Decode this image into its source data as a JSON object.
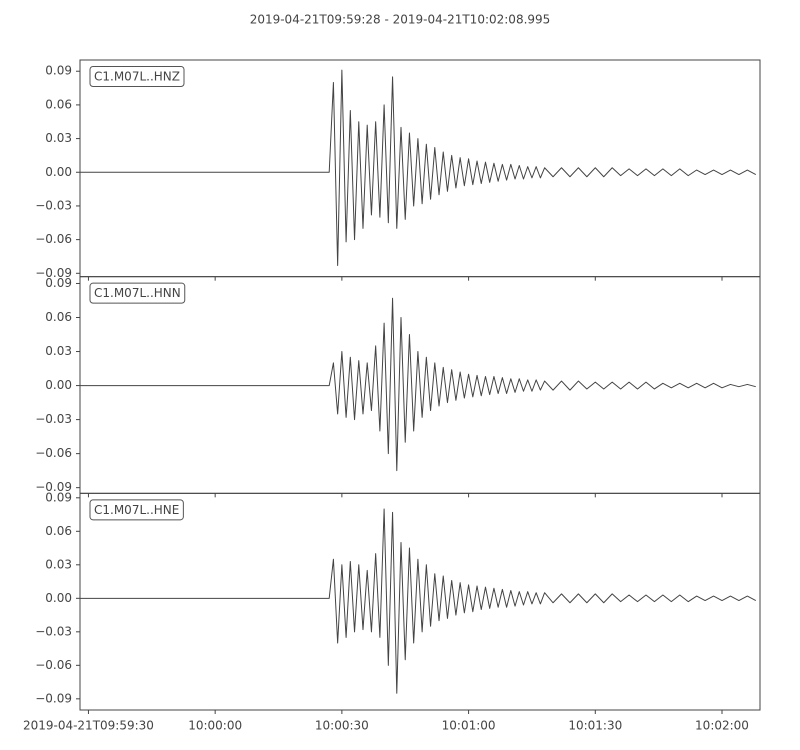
{
  "chart_data": {
    "type": "line",
    "title": "2019-04-21T09:59:28  -  2019-04-21T10:02:08.995",
    "x": [
      0,
      4,
      8,
      12,
      16,
      20,
      24,
      28,
      32,
      36,
      40,
      44,
      48,
      52,
      56,
      58,
      59,
      60,
      61,
      62,
      63,
      64,
      65,
      66,
      67,
      68,
      69,
      70,
      71,
      72,
      73,
      74,
      75,
      76,
      77,
      78,
      79,
      80,
      81,
      82,
      83,
      84,
      85,
      86,
      87,
      88,
      89,
      90,
      91,
      92,
      93,
      94,
      95,
      96,
      97,
      98,
      99,
      100,
      101,
      102,
      103,
      104,
      105,
      106,
      107,
      108,
      109,
      110,
      112,
      114,
      116,
      118,
      120,
      122,
      124,
      126,
      128,
      130,
      132,
      134,
      136,
      138,
      140,
      142,
      144,
      146,
      148,
      150,
      152,
      154,
      156,
      158,
      160
    ],
    "xlim": [
      0,
      160.995
    ],
    "xticks": [
      {
        "value": 2,
        "label": "2019-04-21T09:59:30"
      },
      {
        "value": 32,
        "label": "10:00:00"
      },
      {
        "value": 62,
        "label": "10:00:30"
      },
      {
        "value": 92,
        "label": "10:01:00"
      },
      {
        "value": 122,
        "label": "10:01:30"
      },
      {
        "value": 152,
        "label": "10:02:00"
      }
    ],
    "yticks": [
      0.09,
      0.06,
      0.03,
      {
        "value": 0,
        "label": "0.00"
      },
      {
        "value": -0.03,
        "label": "−0.03"
      },
      {
        "value": -0.06,
        "label": "−0.06"
      },
      {
        "value": -0.09,
        "label": "−0.09"
      }
    ],
    "series": [
      {
        "name": "C1.M07L..HNZ",
        "color": "#444444",
        "ylim": [
          -0.093,
          0.1
        ],
        "values": [
          0,
          0,
          0,
          0,
          0,
          0,
          0,
          0,
          0,
          0,
          0,
          0,
          0,
          0,
          0,
          0,
          0,
          0.08,
          -0.083,
          0.091,
          -0.062,
          0.055,
          -0.06,
          0.045,
          -0.05,
          0.042,
          -0.038,
          0.045,
          -0.04,
          0.06,
          -0.045,
          0.085,
          -0.05,
          0.04,
          -0.042,
          0.035,
          -0.03,
          0.03,
          -0.028,
          0.025,
          -0.024,
          0.022,
          -0.02,
          0.018,
          -0.017,
          0.015,
          -0.014,
          0.013,
          -0.012,
          0.012,
          -0.011,
          0.01,
          -0.01,
          0.009,
          -0.009,
          0.008,
          -0.008,
          0.007,
          -0.007,
          0.007,
          -0.006,
          0.006,
          -0.006,
          0.005,
          -0.005,
          0.005,
          -0.005,
          0.004,
          -0.004,
          0.004,
          -0.004,
          0.004,
          -0.004,
          0.004,
          -0.004,
          0.004,
          -0.003,
          0.003,
          -0.003,
          0.003,
          -0.003,
          0.003,
          -0.003,
          0.003,
          -0.003,
          0.002,
          -0.002,
          0.002,
          -0.002,
          0.002,
          -0.002,
          0.002,
          -0.002
        ]
      },
      {
        "name": "C1.M07L..HNN",
        "color": "#444444",
        "ylim": [
          -0.095,
          0.096
        ],
        "values": [
          0,
          0,
          0,
          0,
          0,
          0,
          0,
          0,
          0,
          0,
          0,
          0,
          0,
          0,
          0,
          0,
          0,
          0.02,
          -0.025,
          0.03,
          -0.028,
          0.025,
          -0.03,
          0.022,
          -0.025,
          0.02,
          -0.022,
          0.035,
          -0.04,
          0.055,
          -0.06,
          0.077,
          -0.075,
          0.06,
          -0.05,
          0.045,
          -0.04,
          0.03,
          -0.028,
          0.025,
          -0.022,
          0.02,
          -0.018,
          0.016,
          -0.015,
          0.014,
          -0.013,
          0.012,
          -0.011,
          0.01,
          -0.01,
          0.009,
          -0.009,
          0.008,
          -0.008,
          0.008,
          -0.007,
          0.007,
          -0.007,
          0.006,
          -0.006,
          0.006,
          -0.005,
          0.005,
          -0.005,
          0.005,
          -0.004,
          0.004,
          -0.004,
          0.004,
          -0.004,
          0.004,
          -0.003,
          0.003,
          -0.003,
          0.003,
          -0.003,
          0.003,
          -0.003,
          0.003,
          -0.003,
          0.002,
          -0.002,
          0.002,
          -0.002,
          0.002,
          -0.002,
          0.002,
          -0.002,
          0.001,
          -0.001,
          0.001,
          -0.001
        ]
      },
      {
        "name": "C1.M07L..HNE",
        "color": "#444444",
        "ylim": [
          -0.1,
          0.094
        ],
        "values": [
          0,
          0,
          0,
          0,
          0,
          0,
          0,
          0,
          0,
          0,
          0,
          0,
          0,
          0,
          0,
          0,
          0,
          0.035,
          -0.04,
          0.03,
          -0.035,
          0.033,
          -0.03,
          0.03,
          -0.028,
          0.025,
          -0.03,
          0.04,
          -0.035,
          0.08,
          -0.06,
          0.077,
          -0.085,
          0.05,
          -0.055,
          0.045,
          -0.04,
          0.035,
          -0.03,
          0.03,
          -0.025,
          0.022,
          -0.02,
          0.02,
          -0.018,
          0.016,
          -0.015,
          0.014,
          -0.013,
          0.012,
          -0.012,
          0.011,
          -0.01,
          0.01,
          -0.009,
          0.009,
          -0.008,
          0.008,
          -0.008,
          0.007,
          -0.007,
          0.006,
          -0.006,
          0.006,
          -0.005,
          0.005,
          -0.005,
          0.005,
          -0.004,
          0.004,
          -0.004,
          0.004,
          -0.004,
          0.004,
          -0.004,
          0.004,
          -0.003,
          0.003,
          -0.003,
          0.003,
          -0.003,
          0.003,
          -0.003,
          0.003,
          -0.003,
          0.002,
          -0.002,
          0.002,
          -0.002,
          0.002,
          -0.002,
          0.002,
          -0.002
        ]
      }
    ]
  }
}
